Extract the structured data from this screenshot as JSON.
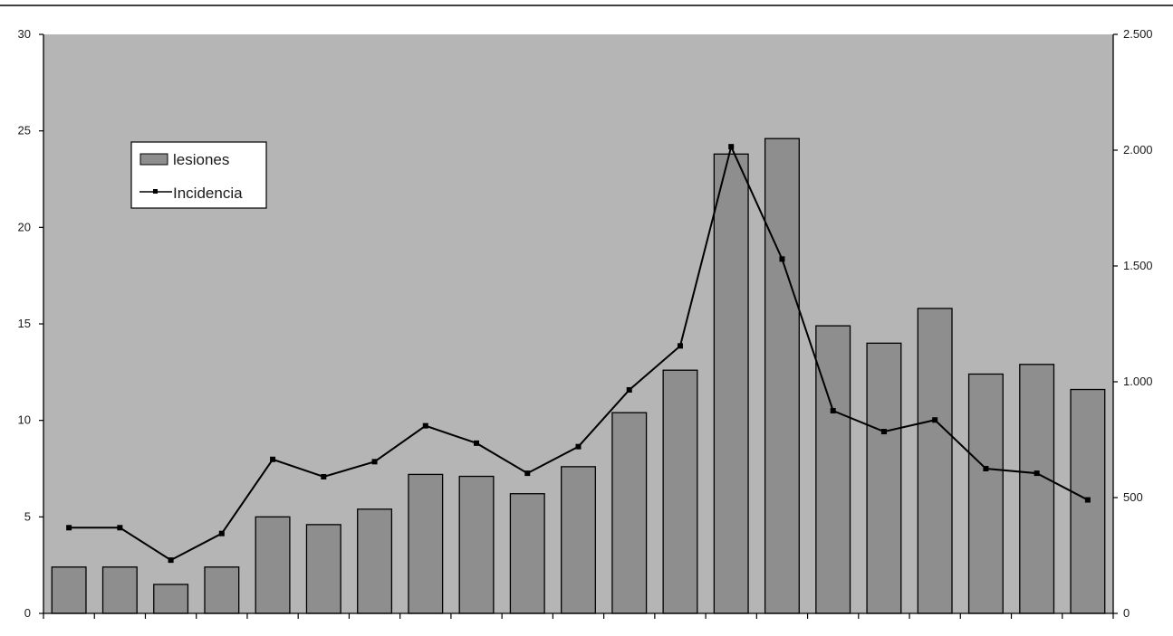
{
  "chart_data": {
    "type": "bar",
    "categories": [
      "",
      "",
      "",
      "",
      "",
      "",
      "",
      "",
      "",
      "",
      "",
      "",
      "",
      "",
      "",
      "",
      "",
      "",
      "",
      "",
      ""
    ],
    "series": [
      {
        "name": "lesiones",
        "type": "bar",
        "axis": "left",
        "values": [
          2.4,
          2.4,
          1.5,
          2.4,
          5.0,
          4.6,
          5.4,
          7.2,
          7.1,
          6.2,
          7.6,
          10.4,
          12.6,
          23.8,
          24.6,
          14.9,
          14.0,
          15.8,
          12.4,
          12.9,
          11.6
        ]
      },
      {
        "name": "Incidencia",
        "type": "line",
        "axis": "right",
        "values": [
          370,
          370,
          230,
          345,
          665,
          590,
          655,
          810,
          735,
          605,
          720,
          965,
          1155,
          2015,
          1530,
          875,
          785,
          835,
          625,
          605,
          490
        ]
      }
    ],
    "y_left": {
      "range": [
        0,
        30
      ],
      "ticks": [
        0,
        5,
        10,
        15,
        20,
        25,
        30
      ],
      "tick_labels": [
        "0",
        "5",
        "10",
        "15",
        "20",
        "25",
        "30"
      ]
    },
    "y_right": {
      "range": [
        0,
        2500
      ],
      "ticks": [
        0,
        500,
        1000,
        1500,
        2000,
        2500
      ],
      "tick_labels": [
        "0",
        "500",
        "1.000",
        "1.500",
        "2.000",
        "2.500"
      ]
    },
    "legend": {
      "position": "upper-left",
      "entries": [
        "lesiones",
        "Incidencia"
      ]
    },
    "grid": false,
    "colors": {
      "plot_background": "#b5b5b5",
      "bar_fill": "#8e8e8e",
      "bar_stroke": "#000000",
      "line": "#000000"
    }
  }
}
